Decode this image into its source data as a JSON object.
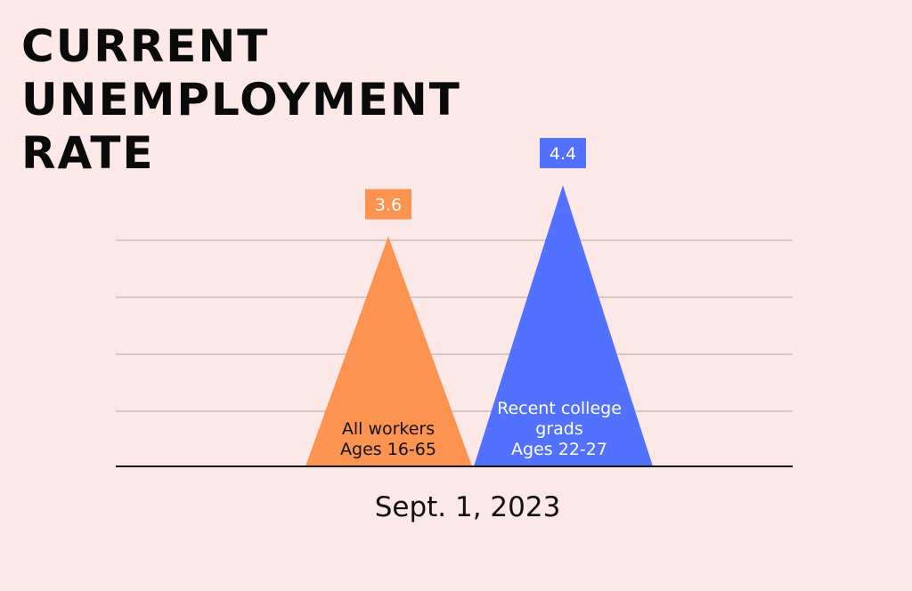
{
  "chart_data": {
    "type": "bar",
    "shape": "triangle",
    "title_lines": [
      "CURRENT",
      "UNEMPLOYMENT",
      "RATE"
    ],
    "x_category": "Sept. 1, 2023",
    "series": [
      {
        "label_lines": [
          "All workers",
          "Ages 16-65"
        ],
        "value": 3.6,
        "value_label": "3.6",
        "color": "#fc9350"
      },
      {
        "label_lines": [
          "Recent college",
          "grads",
          "Ages 22-27"
        ],
        "value": 4.4,
        "value_label": "4.4",
        "color": "#5271ff"
      }
    ],
    "ylim": [
      0,
      4.4
    ],
    "grid": true,
    "grid_color": "#d8c8c8",
    "axis_color": "#111111",
    "background": "#fde8e8"
  }
}
